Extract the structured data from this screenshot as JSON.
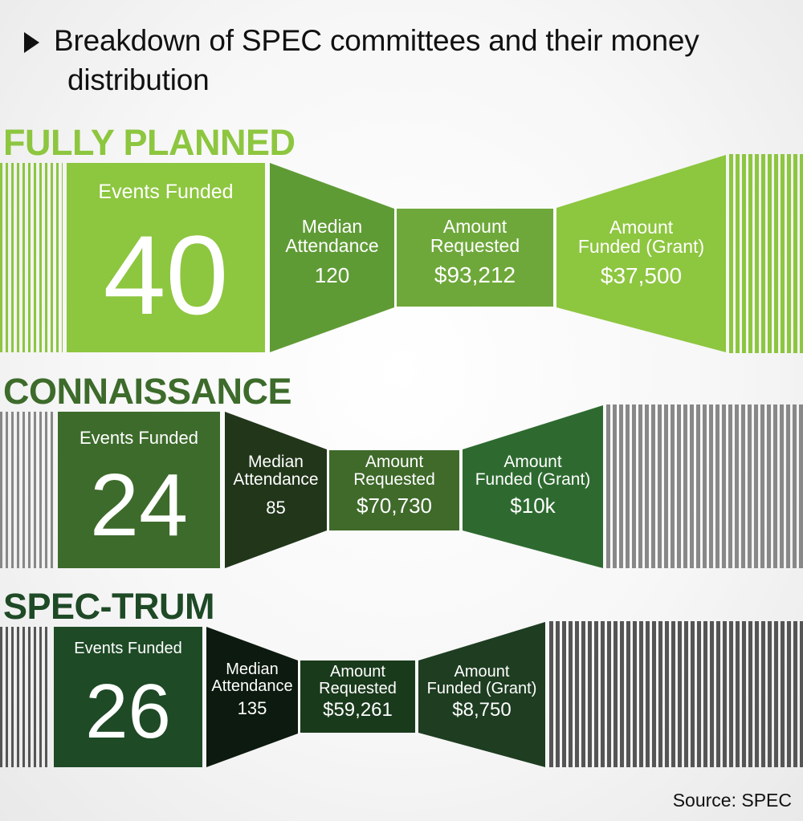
{
  "title": {
    "line1": "Breakdown of SPEC committees and their money",
    "line2": "distribution"
  },
  "source": "Source: SPEC",
  "sections": [
    {
      "name": "FULLY PLANNED",
      "events_label": "Events Funded",
      "events_value": "40",
      "median_label": [
        "Median",
        "Attendance"
      ],
      "median_value": "120",
      "requested_label": [
        "Amount",
        "Requested"
      ],
      "requested_value": "$93,212",
      "funded_label": [
        "Amount",
        "Funded (Grant)"
      ],
      "funded_value": "$37,500",
      "colors": {
        "heading": "#8dc63f",
        "box": "#8dc63f",
        "median": "#5f9b35",
        "requested": "#6ea83a",
        "funded": "#8dc63f",
        "barcode": "#8dc63f"
      }
    },
    {
      "name": "CONNAISSANCE",
      "events_label": "Events Funded",
      "events_value": "24",
      "median_label": [
        "Median",
        "Attendance"
      ],
      "median_value": "85",
      "requested_label": [
        "Amount",
        "Requested"
      ],
      "requested_value": "$70,730",
      "funded_label": [
        "Amount",
        "Funded (Grant)"
      ],
      "funded_value": "$10k",
      "colors": {
        "heading": "#3d6b2b",
        "box": "#3d6b2b",
        "median": "#22361a",
        "requested": "#3f6a2a",
        "funded": "#2e6a30",
        "barcode": "#888888"
      }
    },
    {
      "name": "SPEC-TRUM",
      "events_label": "Events Funded",
      "events_value": "26",
      "median_label": [
        "Median",
        "Attendance"
      ],
      "median_value": "135",
      "requested_label": [
        "Amount",
        "Requested"
      ],
      "requested_value": "$59,261",
      "funded_label": [
        "Amount",
        "Funded (Grant)"
      ],
      "funded_value": "$8,750",
      "colors": {
        "heading": "#1e4a26",
        "box": "#1e4a26",
        "median": "#0d1a0f",
        "requested": "#1a3a1c",
        "funded": "#1e3d21",
        "barcode": "#555555"
      }
    }
  ]
}
